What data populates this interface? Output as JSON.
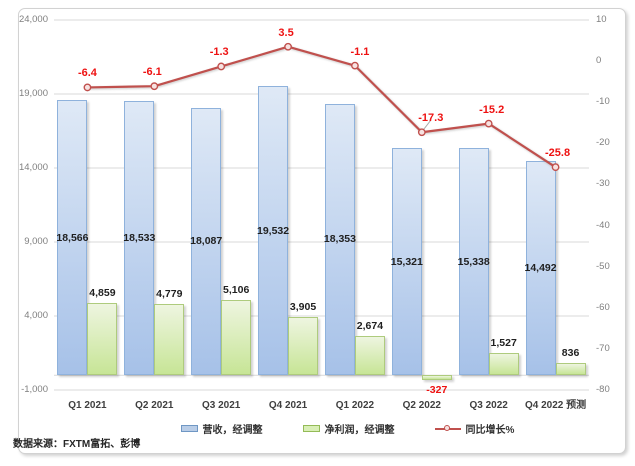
{
  "chart_data": {
    "type": "combo",
    "title": "",
    "categories": [
      "Q1 2021",
      "Q2 2021",
      "Q3 2021",
      "Q4 2021",
      "Q1 2022",
      "Q2 2022",
      "Q3 2022",
      "Q4 2022 预测"
    ],
    "series": [
      {
        "name": "营收，经调整",
        "type": "bar",
        "axis": "left",
        "values": [
          18566,
          18533,
          18087,
          19532,
          18353,
          15321,
          15338,
          14492
        ],
        "labels": [
          "18,566",
          "18,533",
          "18,087",
          "19,532",
          "18,353",
          "15,321",
          "15,338",
          "14,492"
        ]
      },
      {
        "name": "净利润，经调整",
        "type": "bar",
        "axis": "left",
        "values": [
          4859,
          4779,
          5106,
          3905,
          2674,
          -327,
          1527,
          836
        ],
        "labels": [
          "4,859",
          "4,779",
          "5,106",
          "3,905",
          "2,674",
          "-327",
          "1,527",
          "836"
        ]
      },
      {
        "name": "同比增长%",
        "type": "line",
        "axis": "right",
        "values": [
          -6.4,
          -6.1,
          -1.3,
          3.5,
          -1.1,
          -17.3,
          -15.2,
          -25.8
        ],
        "labels": [
          "-6.4",
          "-6.1",
          "-1.3",
          "3.5",
          "-1.1",
          "-17.3",
          "-15.2",
          "-25.8"
        ]
      }
    ],
    "left_axis": {
      "range": [
        -1000,
        24000
      ],
      "tick_values": [
        24000,
        19000,
        14000,
        9000,
        4000,
        -1000
      ],
      "tick_labels": [
        "24,000",
        "19,000",
        "14,000",
        "9,000",
        "4,000",
        "-1,000"
      ]
    },
    "right_axis": {
      "range": [
        -80,
        10
      ],
      "tick_values": [
        10,
        0,
        -10,
        -20,
        -30,
        -40,
        -50,
        -60,
        -70,
        -80
      ],
      "tick_labels": [
        "10",
        "0",
        "-10",
        "-20",
        "-30",
        "-40",
        "-50",
        "-60",
        "-70",
        "-80"
      ]
    },
    "grid": true,
    "legend_position": "bottom"
  },
  "source_note": "数据来源：FXTM富拓、彭博",
  "colors": {
    "revenue_fill_top": "#dfe9f6",
    "revenue_fill_bottom": "#a6c1e8",
    "revenue_border": "#8fb2dc",
    "profit_fill_top": "#eef5e0",
    "profit_fill_bottom": "#c7e596",
    "profit_border": "#aecb7d",
    "growth_line": "#c0504d",
    "growth_marker_fill": "#f7e2e1",
    "growth_label": "#ee1111",
    "negative_label": "#ee1111",
    "grid": "#d9d9d9",
    "axis_line": "#d9d9d9",
    "legend_revenue_fill": "#b9cde7",
    "legend_revenue_border": "#6f97c4",
    "legend_profit_fill": "#d9efb6",
    "legend_profit_border": "#94bb57"
  }
}
